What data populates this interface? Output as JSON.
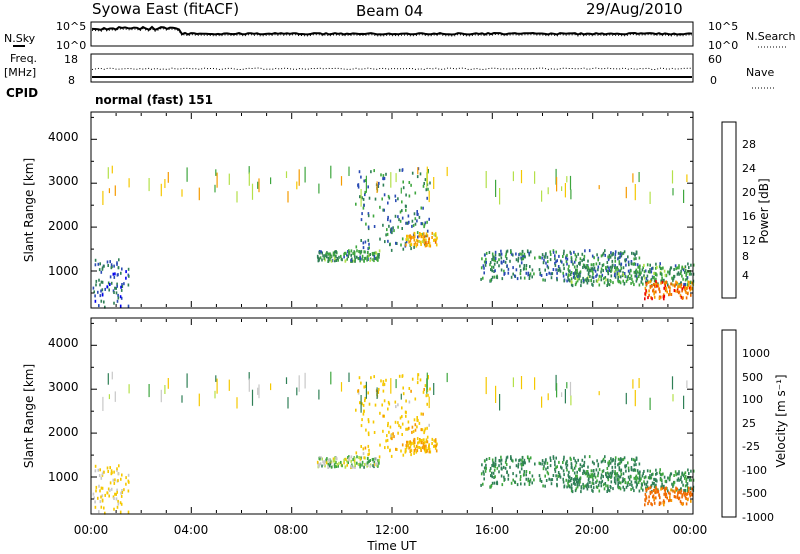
{
  "header": {
    "station": "Syowa East (fitACF)",
    "beam": "Beam 04",
    "date": "29/Aug/2010"
  },
  "noise_panel": {
    "left_label": "N.Sky",
    "right_label": "N.Search",
    "ticks": [
      "10^5",
      "10^0"
    ]
  },
  "freq_panel": {
    "left_label_1": "Freq.",
    "left_label_2": "[MHz]",
    "left_ticks": [
      "18",
      "8"
    ],
    "right_label": "Nave",
    "right_ticks": [
      "60",
      "0"
    ],
    "cpid_label": "CPID"
  },
  "cpid_text": "normal (fast) 151",
  "power_panel": {
    "ylabel": "Slant Range [km]",
    "yticks": [
      "4000",
      "3000",
      "2000",
      "1000"
    ],
    "colorbar_label": "Power [dB]",
    "colorbar_ticks": [
      "28",
      "24",
      "20",
      "16",
      "12",
      "8",
      "4"
    ],
    "colors": [
      "#0000ee",
      "#2a4bb4",
      "#2f7f56",
      "#3ea63e",
      "#b4e04a",
      "#f5c800",
      "#f59b00",
      "#f06a00",
      "#ee0000"
    ]
  },
  "velocity_panel": {
    "ylabel": "Slant Range [km]",
    "yticks": [
      "4000",
      "3000",
      "2000",
      "1000"
    ],
    "colorbar_label": "Velocity [m s⁻¹]",
    "colorbar_ticks": [
      "1000",
      "500",
      "100",
      "25",
      "-25",
      "-100",
      "-500",
      "-1000"
    ],
    "colors": [
      "#2a3fb4",
      "#2f7f56",
      "#3ea63e",
      "#b4e04a",
      "#c8c8c8",
      "#f5c800",
      "#f59b00",
      "#f06a00",
      "#ee0000"
    ]
  },
  "xaxis": {
    "label": "Time UT",
    "ticks": [
      "00:00",
      "04:00",
      "08:00",
      "12:00",
      "16:00",
      "20:00",
      "00:00"
    ]
  },
  "chart_data": {
    "type": "heatmap",
    "title": "Syowa East (fitACF)",
    "xlabel": "Time UT",
    "ylabel": "Slant Range [km]",
    "x_range_hours_ut": [
      0,
      24
    ],
    "y_range_km": [
      180,
      4600
    ],
    "panels": [
      "Power [dB]",
      "Velocity [m s⁻¹]"
    ],
    "power_scale_db": [
      0,
      30
    ],
    "velocity_scale_ms": [
      -1000,
      1000
    ],
    "scatter_regions": [
      {
        "time_ut": [
          0.0,
          1.5
        ],
        "range_km": [
          200,
          1300
        ],
        "power_db": 6,
        "velocity_ms": -150
      },
      {
        "time_ut": [
          9.0,
          11.5
        ],
        "range_km": [
          1250,
          1500
        ],
        "power_db": 10,
        "velocity_ms": 0
      },
      {
        "time_ut": [
          10.5,
          13.5
        ],
        "range_km": [
          1500,
          3400
        ],
        "power_db": 8,
        "velocity_ms": -200
      },
      {
        "time_ut": [
          12.5,
          13.8
        ],
        "range_km": [
          1600,
          1900
        ],
        "power_db": 20,
        "velocity_ms": -300
      },
      {
        "time_ut": [
          15.5,
          22.0
        ],
        "range_km": [
          800,
          1500
        ],
        "power_db": 8,
        "velocity_ms": 150
      },
      {
        "time_ut": [
          19.0,
          24.0
        ],
        "range_km": [
          700,
          1200
        ],
        "power_db": 10,
        "velocity_ms": 150
      },
      {
        "time_ut": [
          22.0,
          24.0
        ],
        "range_km": [
          400,
          800
        ],
        "power_db": 24,
        "velocity_ms": -600
      }
    ]
  }
}
